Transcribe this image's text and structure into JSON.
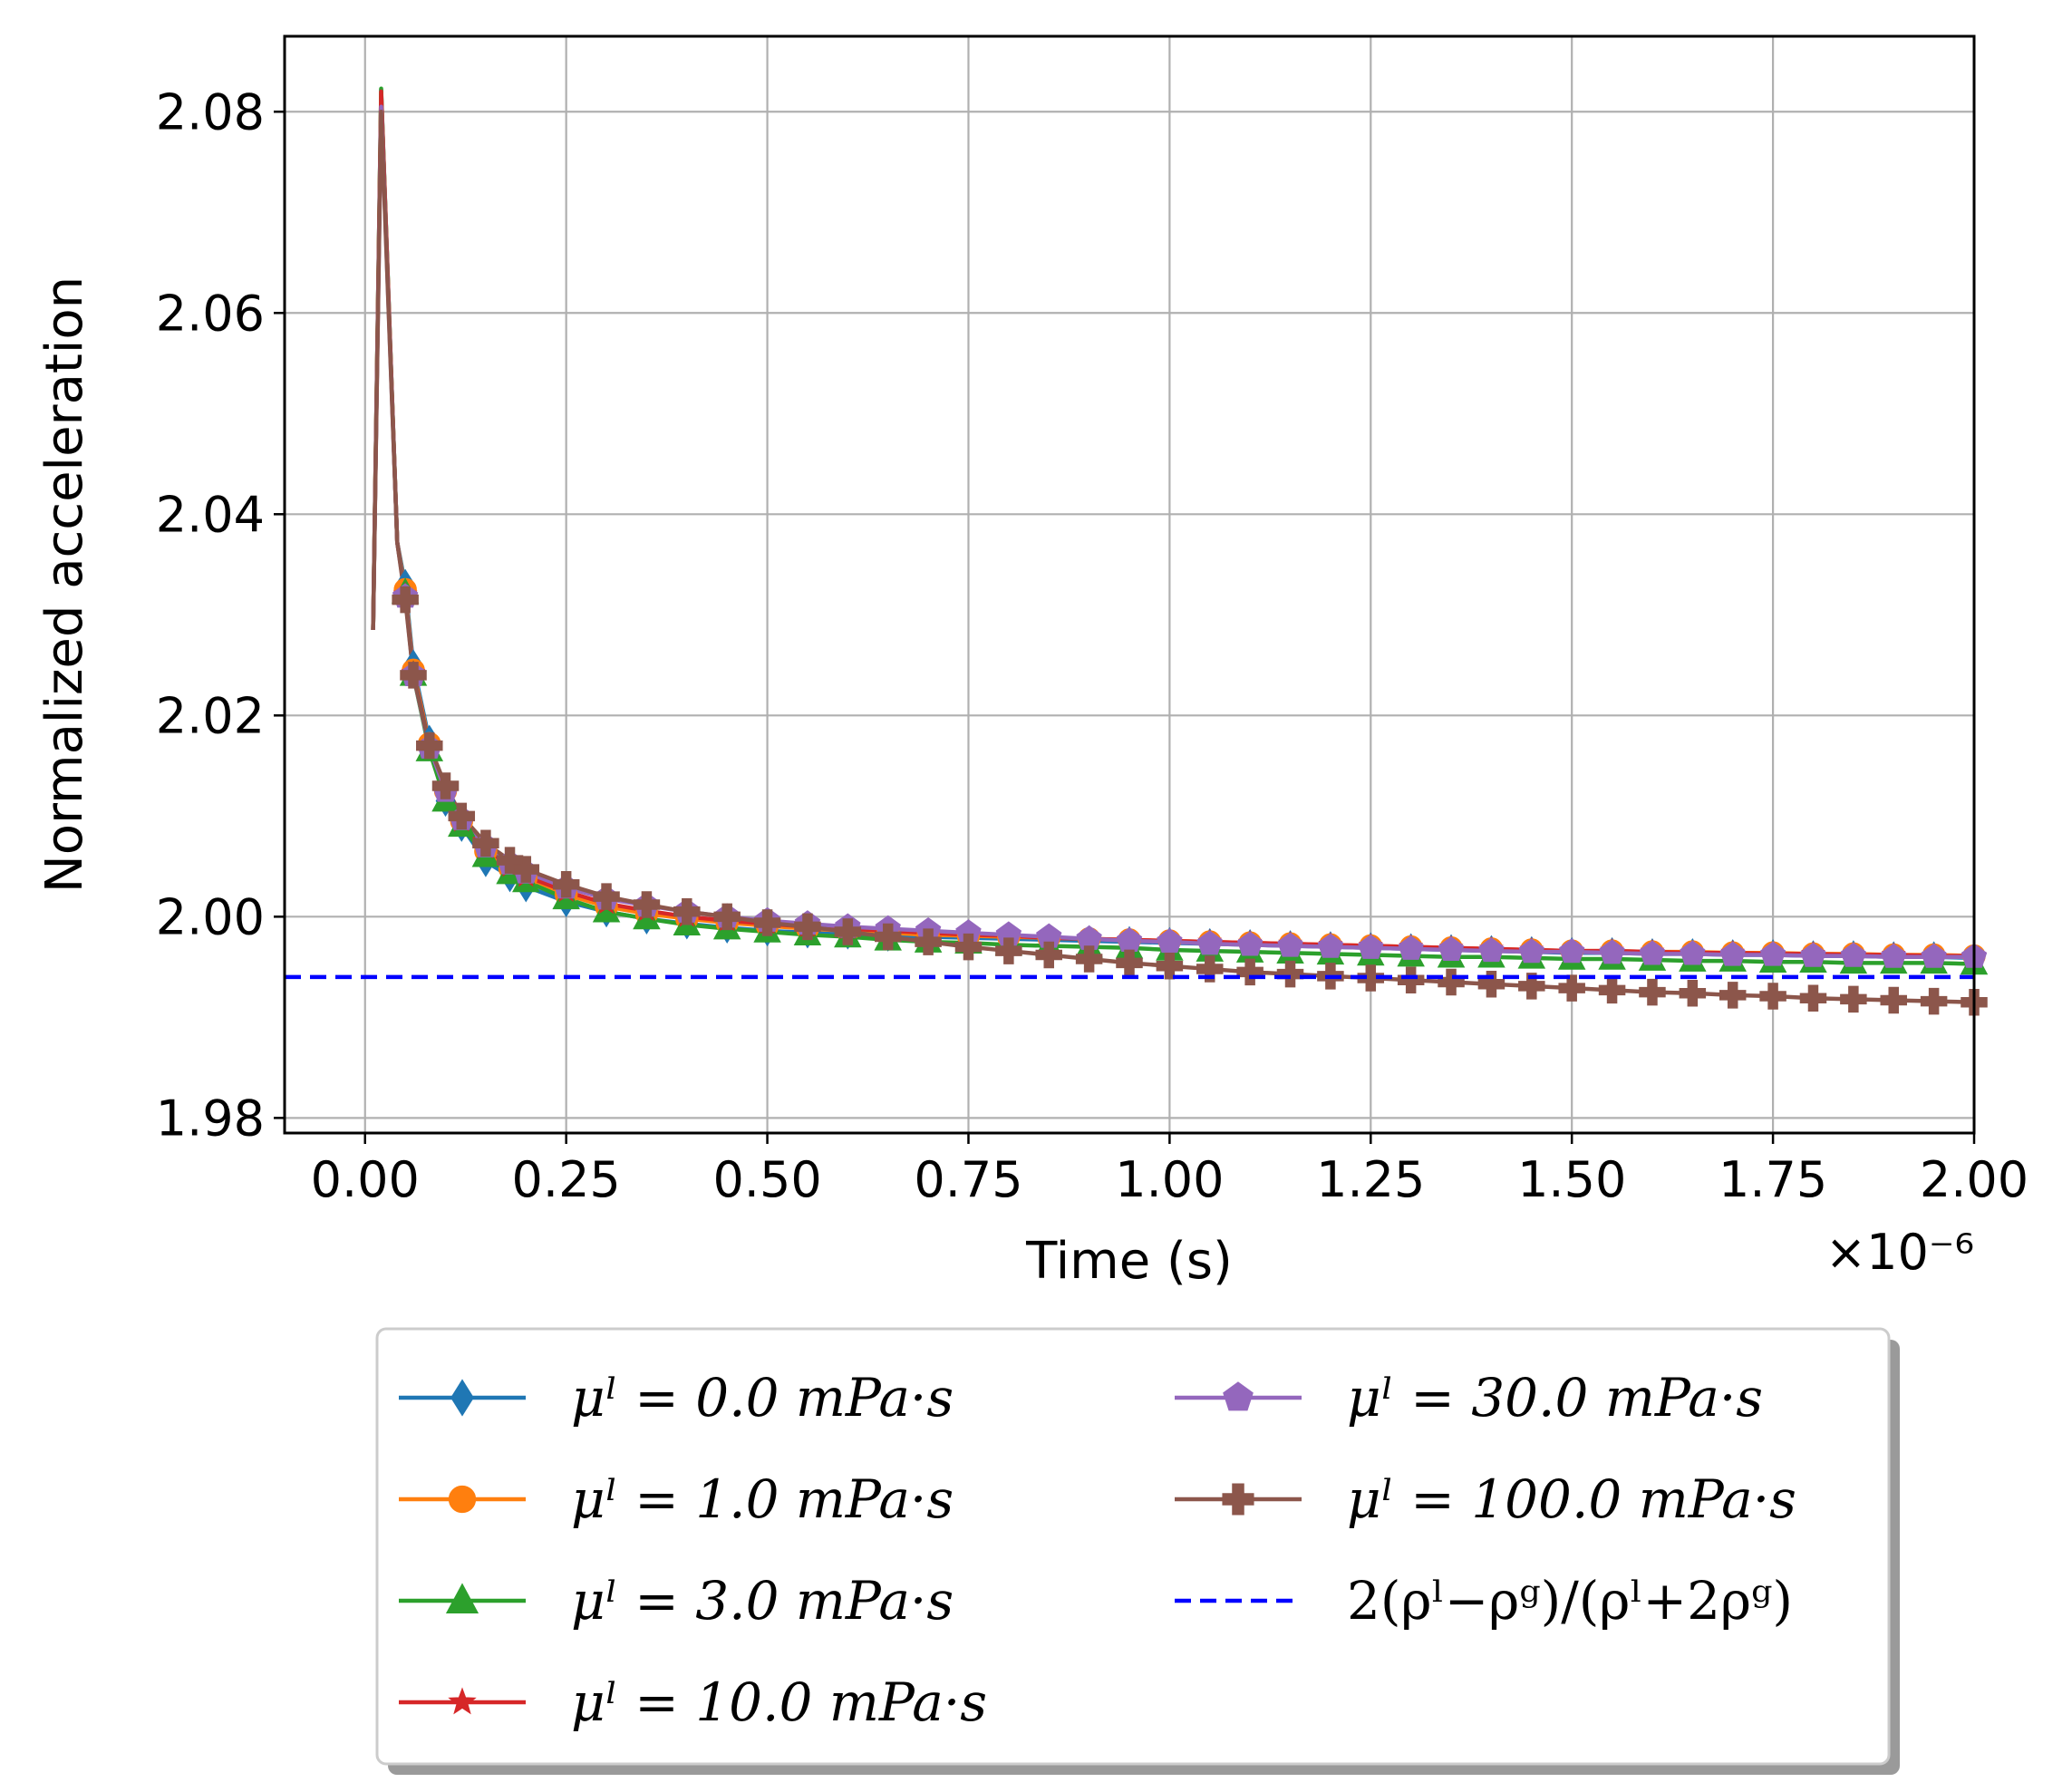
{
  "chart_data": {
    "type": "line",
    "title": "",
    "xlabel": "Time (s)",
    "ylabel": "Normalized acceleration",
    "x_offset_label": "×10⁻⁶",
    "x_scale": 1e-06,
    "xlim": [
      -0.1,
      2.0
    ],
    "ylim": [
      1.9785,
      2.0875
    ],
    "x_ticks": [
      "0.00",
      "0.25",
      "0.50",
      "0.75",
      "1.00",
      "1.25",
      "1.50",
      "1.75",
      "2.00"
    ],
    "x_tick_values": [
      0.0,
      0.25,
      0.5,
      0.75,
      1.0,
      1.25,
      1.5,
      1.75,
      2.0
    ],
    "y_ticks": [
      "1.98",
      "2.00",
      "2.02",
      "2.04",
      "2.06",
      "2.08"
    ],
    "y_tick_values": [
      1.98,
      2.0,
      2.02,
      2.04,
      2.06,
      2.08
    ],
    "grid": true,
    "legend_placement": "below",
    "x": [
      0.01,
      0.02,
      0.04,
      0.05,
      0.06,
      0.08,
      0.1,
      0.12,
      0.15,
      0.18,
      0.2,
      0.25,
      0.3,
      0.35,
      0.4,
      0.45,
      0.5,
      0.55,
      0.6,
      0.65,
      0.7,
      0.75,
      0.8,
      0.85,
      0.9,
      0.95,
      1.0,
      1.05,
      1.1,
      1.15,
      1.2,
      1.25,
      1.3,
      1.35,
      1.4,
      1.45,
      1.5,
      1.55,
      1.6,
      1.65,
      1.7,
      1.75,
      1.8,
      1.85,
      1.9,
      1.95,
      2.0
    ],
    "series": [
      {
        "name": "μˡ = 0.0 mPa·s",
        "color": "#1f77b4",
        "marker": "thin_diamond",
        "values": [
          2.0285,
          2.0822,
          2.0372,
          2.033,
          2.025,
          2.0175,
          2.0115,
          2.009,
          2.0055,
          2.004,
          2.003,
          2.0015,
          2.0005,
          1.9998,
          1.9993,
          1.9989,
          1.9986,
          1.9984,
          1.9983,
          1.9981,
          1.998,
          1.9979,
          1.9978,
          1.9977,
          1.9976,
          1.9975,
          1.9974,
          1.9973,
          1.9972,
          1.9971,
          1.997,
          1.9969,
          1.9968,
          1.9967,
          1.9966,
          1.9965,
          1.9964,
          1.9964,
          1.9963,
          1.9963,
          1.9962,
          1.9962,
          1.9961,
          1.9961,
          1.996,
          1.996,
          1.9959
        ]
      },
      {
        "name": "μˡ = 1.0 mPa·s",
        "color": "#ff7f0e",
        "marker": "circle",
        "values": [
          2.0285,
          2.082,
          2.0372,
          2.0325,
          2.0245,
          2.0172,
          2.0125,
          2.0095,
          2.0065,
          2.0048,
          2.0038,
          2.0022,
          2.001,
          2.0003,
          1.9998,
          1.9994,
          1.9991,
          1.9988,
          1.9986,
          1.9984,
          1.9982,
          1.9981,
          1.998,
          1.9979,
          1.9978,
          1.9977,
          1.9976,
          1.9975,
          1.9974,
          1.9973,
          1.9972,
          1.9971,
          1.997,
          1.9969,
          1.9968,
          1.9967,
          1.9966,
          1.9966,
          1.9965,
          1.9965,
          1.9964,
          1.9964,
          1.9963,
          1.9963,
          1.9962,
          1.9962,
          1.9961
        ]
      },
      {
        "name": "μˡ = 3.0 mPa·s",
        "color": "#2ca02c",
        "marker": "triangle",
        "values": [
          2.0285,
          2.0823,
          2.0372,
          2.0322,
          2.024,
          2.0165,
          2.0115,
          2.009,
          2.006,
          2.0043,
          2.0035,
          2.0018,
          2.0005,
          1.9998,
          1.9992,
          1.9988,
          1.9985,
          1.9982,
          1.998,
          1.9977,
          1.9975,
          1.9974,
          1.9972,
          1.9971,
          1.997,
          1.9969,
          1.9967,
          1.9966,
          1.9965,
          1.9964,
          1.9963,
          1.9962,
          1.9961,
          1.996,
          1.996,
          1.9959,
          1.9958,
          1.9958,
          1.9957,
          1.9956,
          1.9956,
          1.9955,
          1.9955,
          1.9954,
          1.9954,
          1.9954,
          1.9953
        ]
      },
      {
        "name": "μˡ = 10.0 mPa·s",
        "color": "#d62728",
        "marker": "star",
        "values": [
          2.0285,
          2.082,
          2.0372,
          2.032,
          2.0242,
          2.017,
          2.0125,
          2.0095,
          2.0068,
          2.005,
          2.004,
          2.0025,
          2.0013,
          2.0006,
          2.0,
          1.9996,
          1.9993,
          1.999,
          1.9988,
          1.9986,
          1.9984,
          1.9982,
          1.9981,
          1.9979,
          1.9978,
          1.9977,
          1.9976,
          1.9975,
          1.9974,
          1.9973,
          1.9972,
          1.9971,
          1.997,
          1.9969,
          1.9968,
          1.9967,
          1.9966,
          1.9966,
          1.9965,
          1.9964,
          1.9964,
          1.9963,
          1.9963,
          1.9962,
          1.9962,
          1.9961,
          1.9961
        ]
      },
      {
        "name": "μˡ = 30.0 mPa·s",
        "color": "#9467bd",
        "marker": "pentagon",
        "values": [
          2.0285,
          2.0805,
          2.0372,
          2.0318,
          2.024,
          2.0168,
          2.0125,
          2.0097,
          2.007,
          2.0053,
          2.0044,
          2.0029,
          2.0018,
          2.0011,
          2.0005,
          2.0,
          1.9996,
          1.9993,
          1.999,
          1.9988,
          1.9986,
          1.9984,
          1.9982,
          1.998,
          1.9978,
          1.9976,
          1.9975,
          1.9973,
          1.9972,
          1.9971,
          1.997,
          1.9969,
          1.9968,
          1.9967,
          1.9966,
          1.9965,
          1.9965,
          1.9964,
          1.9963,
          1.9963,
          1.9962,
          1.9962,
          1.9961,
          1.9961,
          1.996,
          1.996,
          1.996
        ]
      },
      {
        "name": "μˡ = 100.0 mPa·s",
        "color": "#8c564b",
        "marker": "plus",
        "values": [
          2.0285,
          2.08,
          2.0372,
          2.0315,
          2.024,
          2.017,
          2.013,
          2.01,
          2.0073,
          2.0056,
          2.0047,
          2.0032,
          2.002,
          2.0012,
          2.0005,
          2.0,
          1.9994,
          1.999,
          1.9985,
          1.998,
          1.9975,
          1.997,
          1.9966,
          1.9962,
          1.9958,
          1.9954,
          1.9951,
          1.9948,
          1.9945,
          1.9943,
          1.9941,
          1.9939,
          1.9937,
          1.9935,
          1.9933,
          1.9931,
          1.9929,
          1.9927,
          1.9925,
          1.9924,
          1.9922,
          1.9921,
          1.9919,
          1.9918,
          1.9917,
          1.9916,
          1.9915
        ]
      }
    ],
    "reference_line": {
      "name": "2(ρˡ−ρᵍ)/(ρˡ+2ρᵍ)",
      "color": "#0000ff",
      "style": "dashed",
      "y": 1.994
    }
  }
}
